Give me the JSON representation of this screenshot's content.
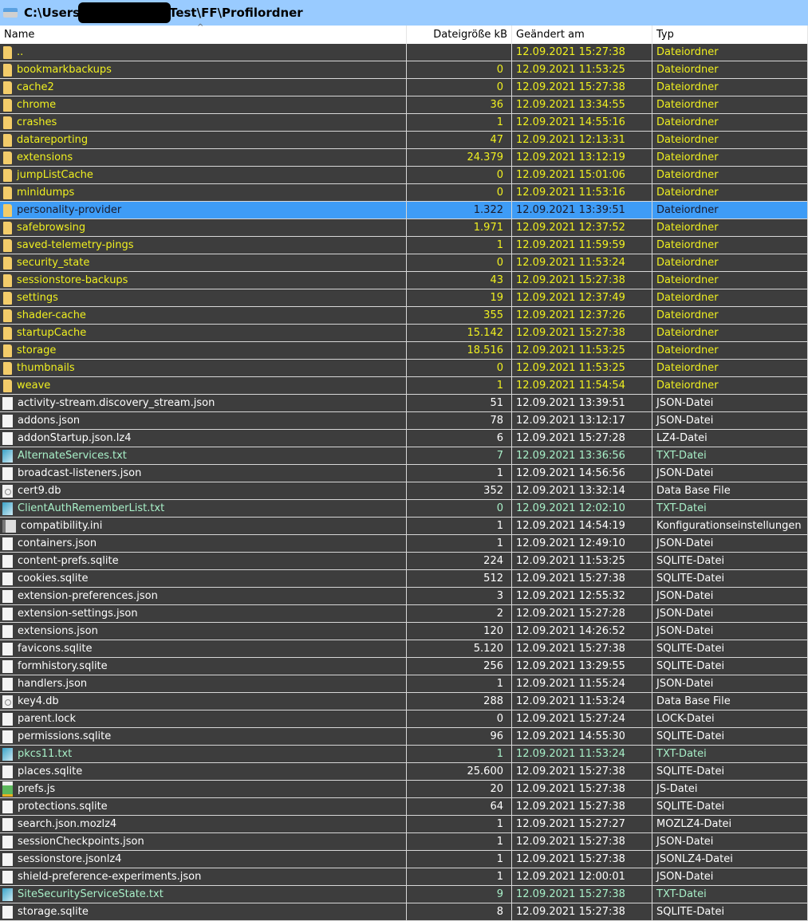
{
  "title": {
    "prefix": "C:\\Users",
    "suffix": "Test\\FF\\Profilordner"
  },
  "columns": [
    "Name",
    "Dateigröße kB",
    "Geändert am",
    "Typ"
  ],
  "rows": [
    {
      "k": "f",
      "name": "..",
      "size": "",
      "date": "12.09.2021 15:27:38",
      "type": "Dateiordner"
    },
    {
      "k": "f",
      "name": "bookmarkbackups",
      "size": "0",
      "date": "12.09.2021 11:53:25",
      "type": "Dateiordner"
    },
    {
      "k": "f",
      "name": "cache2",
      "size": "0",
      "date": "12.09.2021 15:27:38",
      "type": "Dateiordner"
    },
    {
      "k": "f",
      "name": "chrome",
      "size": "36",
      "date": "12.09.2021 13:34:55",
      "type": "Dateiordner"
    },
    {
      "k": "f",
      "name": "crashes",
      "size": "1",
      "date": "12.09.2021 14:55:16",
      "type": "Dateiordner"
    },
    {
      "k": "f",
      "name": "datareporting",
      "size": "47",
      "date": "12.09.2021 12:13:31",
      "type": "Dateiordner"
    },
    {
      "k": "f",
      "name": "extensions",
      "size": "24.379",
      "date": "12.09.2021 13:12:19",
      "type": "Dateiordner"
    },
    {
      "k": "f",
      "name": "jumpListCache",
      "size": "0",
      "date": "12.09.2021 15:01:06",
      "type": "Dateiordner"
    },
    {
      "k": "f",
      "name": "minidumps",
      "size": "0",
      "date": "12.09.2021 11:53:16",
      "type": "Dateiordner"
    },
    {
      "k": "f",
      "name": "personality-provider",
      "size": "1.322",
      "date": "12.09.2021 13:39:51",
      "type": "Dateiordner",
      "selected": true
    },
    {
      "k": "f",
      "name": "safebrowsing",
      "size": "1.971",
      "date": "12.09.2021 12:37:52",
      "type": "Dateiordner"
    },
    {
      "k": "f",
      "name": "saved-telemetry-pings",
      "size": "1",
      "date": "12.09.2021 11:59:59",
      "type": "Dateiordner"
    },
    {
      "k": "f",
      "name": "security_state",
      "size": "0",
      "date": "12.09.2021 11:53:24",
      "type": "Dateiordner"
    },
    {
      "k": "f",
      "name": "sessionstore-backups",
      "size": "43",
      "date": "12.09.2021 15:27:38",
      "type": "Dateiordner"
    },
    {
      "k": "f",
      "name": "settings",
      "size": "19",
      "date": "12.09.2021 12:37:49",
      "type": "Dateiordner"
    },
    {
      "k": "f",
      "name": "shader-cache",
      "size": "355",
      "date": "12.09.2021 12:37:26",
      "type": "Dateiordner"
    },
    {
      "k": "f",
      "name": "startupCache",
      "size": "15.142",
      "date": "12.09.2021 15:27:38",
      "type": "Dateiordner"
    },
    {
      "k": "f",
      "name": "storage",
      "size": "18.516",
      "date": "12.09.2021 11:53:25",
      "type": "Dateiordner"
    },
    {
      "k": "f",
      "name": "thumbnails",
      "size": "0",
      "date": "12.09.2021 11:53:25",
      "type": "Dateiordner"
    },
    {
      "k": "f",
      "name": "weave",
      "size": "1",
      "date": "12.09.2021 11:54:54",
      "type": "Dateiordner"
    },
    {
      "k": "j",
      "name": "activity-stream.discovery_stream.json",
      "size": "51",
      "date": "12.09.2021 13:39:51",
      "type": "JSON-Datei"
    },
    {
      "k": "j",
      "name": "addons.json",
      "size": "78",
      "date": "12.09.2021 13:12:17",
      "type": "JSON-Datei"
    },
    {
      "k": "j",
      "name": "addonStartup.json.lz4",
      "size": "6",
      "date": "12.09.2021 15:27:28",
      "type": "LZ4-Datei"
    },
    {
      "k": "t",
      "name": "AlternateServices.txt",
      "size": "7",
      "date": "12.09.2021 13:36:56",
      "type": "TXT-Datei"
    },
    {
      "k": "j",
      "name": "broadcast-listeners.json",
      "size": "1",
      "date": "12.09.2021 14:56:56",
      "type": "JSON-Datei"
    },
    {
      "k": "d",
      "name": "cert9.db",
      "size": "352",
      "date": "12.09.2021 13:32:14",
      "type": "Data Base File"
    },
    {
      "k": "t",
      "name": "ClientAuthRememberList.txt",
      "size": "0",
      "date": "12.09.2021 12:02:10",
      "type": "TXT-Datei"
    },
    {
      "k": "i",
      "name": "compatibility.ini",
      "size": "1",
      "date": "12.09.2021 14:54:19",
      "type": "Konfigurationseinstellungen"
    },
    {
      "k": "j",
      "name": "containers.json",
      "size": "1",
      "date": "12.09.2021 12:49:10",
      "type": "JSON-Datei"
    },
    {
      "k": "j",
      "name": "content-prefs.sqlite",
      "size": "224",
      "date": "12.09.2021 11:53:25",
      "type": "SQLITE-Datei"
    },
    {
      "k": "j",
      "name": "cookies.sqlite",
      "size": "512",
      "date": "12.09.2021 15:27:38",
      "type": "SQLITE-Datei"
    },
    {
      "k": "j",
      "name": "extension-preferences.json",
      "size": "3",
      "date": "12.09.2021 12:55:32",
      "type": "JSON-Datei"
    },
    {
      "k": "j",
      "name": "extension-settings.json",
      "size": "2",
      "date": "12.09.2021 15:27:28",
      "type": "JSON-Datei"
    },
    {
      "k": "j",
      "name": "extensions.json",
      "size": "120",
      "date": "12.09.2021 14:26:52",
      "type": "JSON-Datei"
    },
    {
      "k": "j",
      "name": "favicons.sqlite",
      "size": "5.120",
      "date": "12.09.2021 15:27:38",
      "type": "SQLITE-Datei"
    },
    {
      "k": "j",
      "name": "formhistory.sqlite",
      "size": "256",
      "date": "12.09.2021 13:29:55",
      "type": "SQLITE-Datei"
    },
    {
      "k": "j",
      "name": "handlers.json",
      "size": "1",
      "date": "12.09.2021 11:55:24",
      "type": "JSON-Datei"
    },
    {
      "k": "d",
      "name": "key4.db",
      "size": "288",
      "date": "12.09.2021 11:53:24",
      "type": "Data Base File"
    },
    {
      "k": "j",
      "name": "parent.lock",
      "size": "0",
      "date": "12.09.2021 15:27:24",
      "type": "LOCK-Datei"
    },
    {
      "k": "j",
      "name": "permissions.sqlite",
      "size": "96",
      "date": "12.09.2021 14:55:30",
      "type": "SQLITE-Datei"
    },
    {
      "k": "t",
      "name": "pkcs11.txt",
      "size": "1",
      "date": "12.09.2021 11:53:24",
      "type": "TXT-Datei"
    },
    {
      "k": "j",
      "name": "places.sqlite",
      "size": "25.600",
      "date": "12.09.2021 15:27:38",
      "type": "SQLITE-Datei"
    },
    {
      "k": "s",
      "name": "prefs.js",
      "size": "20",
      "date": "12.09.2021 15:27:38",
      "type": "JS-Datei"
    },
    {
      "k": "j",
      "name": "protections.sqlite",
      "size": "64",
      "date": "12.09.2021 15:27:38",
      "type": "SQLITE-Datei"
    },
    {
      "k": "j",
      "name": "search.json.mozlz4",
      "size": "1",
      "date": "12.09.2021 15:27:27",
      "type": "MOZLZ4-Datei"
    },
    {
      "k": "j",
      "name": "sessionCheckpoints.json",
      "size": "1",
      "date": "12.09.2021 15:27:38",
      "type": "JSON-Datei"
    },
    {
      "k": "j",
      "name": "sessionstore.jsonlz4",
      "size": "1",
      "date": "12.09.2021 15:27:38",
      "type": "JSONLZ4-Datei"
    },
    {
      "k": "j",
      "name": "shield-preference-experiments.json",
      "size": "1",
      "date": "12.09.2021 12:00:01",
      "type": "JSON-Datei"
    },
    {
      "k": "t",
      "name": "SiteSecurityServiceState.txt",
      "size": "9",
      "date": "12.09.2021 15:27:38",
      "type": "TXT-Datei"
    },
    {
      "k": "j",
      "name": "storage.sqlite",
      "size": "8",
      "date": "12.09.2021 15:27:38",
      "type": "SQLITE-Datei"
    }
  ]
}
